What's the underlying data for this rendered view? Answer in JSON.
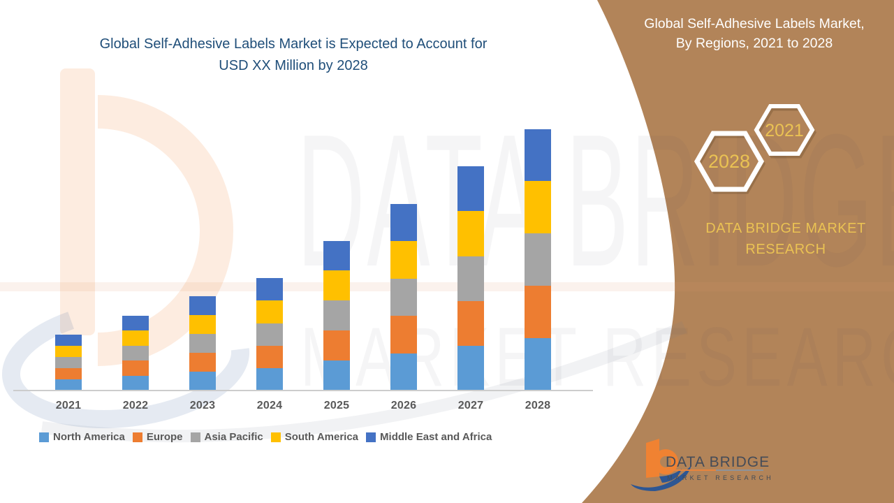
{
  "main_title": {
    "line1": "Global Self-Adhesive Labels Market is Expected to Account for",
    "line2": "USD XX Million by 2028",
    "color": "#1f4e79"
  },
  "side_panel": {
    "bg_color": "#b28459",
    "title_line1": "Global Self-Adhesive Labels Market,",
    "title_line2": "By Regions, 2021 to 2028",
    "hexagon_left_year": "2028",
    "hexagon_right_year": "2021",
    "brand_line1": "DATA BRIDGE MARKET",
    "brand_line2": "RESEARCH",
    "gold_color": "#eac253"
  },
  "footer_logo": {
    "brand": "DATA BRIDGE",
    "sub": "MARKET RESEARCH"
  },
  "watermark": {
    "row1": "DATA BRIDGE",
    "row2": "MARKET RESEARCH"
  },
  "chart_data": {
    "type": "bar",
    "stacked": true,
    "title": "Global Self-Adhesive Labels Market is Expected to Account for USD XX Million by 2028",
    "xlabel": "",
    "ylabel": "",
    "value_axis_shown": false,
    "values_unit": "relative index (actual USD values shown as XX, not disclosed)",
    "categories": [
      "2021",
      "2022",
      "2023",
      "2024",
      "2025",
      "2026",
      "2027",
      "2028"
    ],
    "series": [
      {
        "name": "North America",
        "color": "#5B9BD5",
        "values": [
          1.0,
          1.34,
          1.69,
          2.01,
          2.68,
          3.34,
          4.01,
          4.68
        ]
      },
      {
        "name": "Europe",
        "color": "#ED7D31",
        "values": [
          1.0,
          1.34,
          1.69,
          2.01,
          2.68,
          3.34,
          4.01,
          4.68
        ]
      },
      {
        "name": "Asia Pacific",
        "color": "#A5A5A5",
        "values": [
          1.0,
          1.34,
          1.69,
          2.01,
          2.68,
          3.34,
          4.01,
          4.68
        ]
      },
      {
        "name": "South America",
        "color": "#FFC000",
        "values": [
          1.0,
          1.34,
          1.69,
          2.01,
          2.68,
          3.34,
          4.01,
          4.68
        ]
      },
      {
        "name": "Middle East and Africa",
        "color": "#4472C4",
        "values": [
          1.0,
          1.34,
          1.69,
          2.01,
          2.68,
          3.34,
          4.01,
          4.68
        ]
      }
    ],
    "stack_totals": [
      5.0,
      6.7,
      8.45,
      10.05,
      13.4,
      16.7,
      20.05,
      23.4
    ],
    "legend_position": "bottom",
    "grid": false,
    "x_label_color": "#595959",
    "axis_line_color": "#cccccc"
  }
}
